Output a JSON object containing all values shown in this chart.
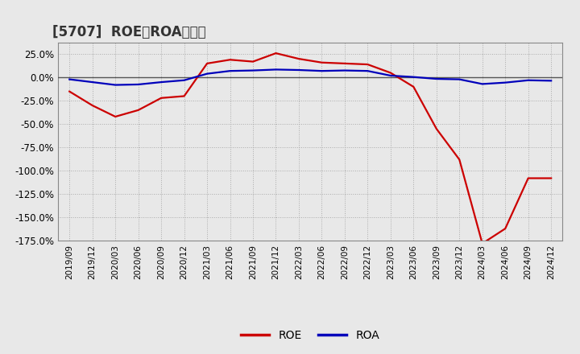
{
  "title": "[5707]  ROE、ROAの推移",
  "roe_dates": [
    "2019/09",
    "2019/12",
    "2020/03",
    "2020/06",
    "2020/09",
    "2020/12",
    "2021/03",
    "2021/06",
    "2021/09",
    "2021/12",
    "2022/03",
    "2022/06",
    "2022/09",
    "2022/12",
    "2023/03",
    "2023/06",
    "2023/09",
    "2023/12",
    "2024/03",
    "2024/06",
    "2024/09",
    "2024/12"
  ],
  "roe_values": [
    -15.0,
    -30.0,
    -42.0,
    -35.0,
    -22.0,
    -20.0,
    15.0,
    19.0,
    17.0,
    26.0,
    20.0,
    16.0,
    15.0,
    14.0,
    5.0,
    -10.0,
    -55.0,
    -88.0,
    -178.0,
    -162.0,
    -108.0,
    -108.0
  ],
  "roa_dates": [
    "2019/09",
    "2019/12",
    "2020/03",
    "2020/06",
    "2020/09",
    "2020/12",
    "2021/03",
    "2021/06",
    "2021/09",
    "2021/12",
    "2022/03",
    "2022/06",
    "2022/09",
    "2022/12",
    "2023/03",
    "2023/06",
    "2023/09",
    "2023/12",
    "2024/03",
    "2024/06",
    "2024/09",
    "2024/12"
  ],
  "roa_values": [
    -2.0,
    -5.0,
    -8.0,
    -7.5,
    -5.0,
    -3.0,
    4.0,
    7.0,
    7.5,
    8.5,
    8.0,
    7.0,
    7.5,
    7.0,
    2.0,
    0.5,
    -1.5,
    -2.0,
    -7.0,
    -5.5,
    -3.0,
    -3.5
  ],
  "roe_color": "#cc0000",
  "roa_color": "#0000bb",
  "background_color": "#e8e8e8",
  "plot_bg_color": "#e8e8e8",
  "ylim": [
    -175.0,
    37.5
  ],
  "yticks": [
    25.0,
    0.0,
    -25.0,
    -50.0,
    -75.0,
    -100.0,
    -125.0,
    -150.0,
    -175.0
  ],
  "xtick_labels": [
    "2019/09",
    "2019/12",
    "2020/03",
    "2020/06",
    "2020/09",
    "2020/12",
    "2021/03",
    "2021/06",
    "2021/09",
    "2021/12",
    "2022/03",
    "2022/06",
    "2022/09",
    "2022/12",
    "2023/03",
    "2023/06",
    "2023/09",
    "2023/12",
    "2024/03",
    "2024/06",
    "2024/09",
    "2024/12"
  ],
  "legend_labels": [
    "ROE",
    "ROA"
  ],
  "line_width": 1.6,
  "grid_color": "#aaaaaa",
  "zero_line_color": "#555555",
  "title_fontsize": 12,
  "tick_fontsize": 7.5,
  "legend_fontsize": 10
}
